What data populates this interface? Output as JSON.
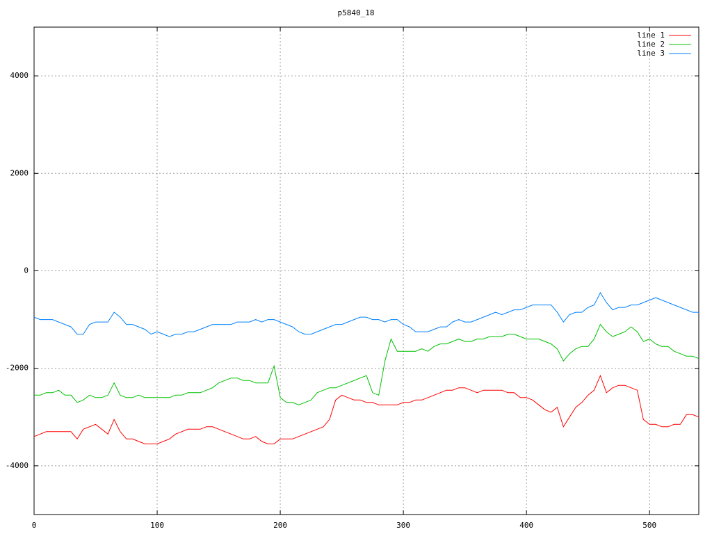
{
  "chart_data": {
    "type": "line",
    "title": "p5840_18",
    "legend": "top-right",
    "grid": true,
    "xlim": [
      0,
      540
    ],
    "ylim": [
      -5000,
      5000
    ],
    "xticks": [
      0,
      100,
      200,
      300,
      400,
      500
    ],
    "yticks": [
      -4000,
      -2000,
      0,
      2000,
      4000
    ],
    "x": [
      0,
      5,
      10,
      15,
      20,
      25,
      30,
      35,
      40,
      45,
      50,
      55,
      60,
      65,
      70,
      75,
      80,
      85,
      90,
      95,
      100,
      105,
      110,
      115,
      120,
      125,
      130,
      135,
      140,
      145,
      150,
      155,
      160,
      165,
      170,
      175,
      180,
      185,
      190,
      195,
      200,
      205,
      210,
      215,
      220,
      225,
      230,
      235,
      240,
      245,
      250,
      255,
      260,
      265,
      270,
      275,
      280,
      285,
      290,
      295,
      300,
      305,
      310,
      315,
      320,
      325,
      330,
      335,
      340,
      345,
      350,
      355,
      360,
      365,
      370,
      375,
      380,
      385,
      390,
      395,
      400,
      405,
      410,
      415,
      420,
      425,
      430,
      435,
      440,
      445,
      450,
      455,
      460,
      465,
      470,
      475,
      480,
      485,
      490,
      495,
      500,
      505,
      510,
      515,
      520,
      525,
      530,
      535,
      540
    ],
    "series": [
      {
        "name": "line 1",
        "color": "#ff0000",
        "values": [
          -3400,
          -3350,
          -3300,
          -3300,
          -3300,
          -3300,
          -3300,
          -3450,
          -3250,
          -3200,
          -3150,
          -3250,
          -3350,
          -3050,
          -3300,
          -3450,
          -3450,
          -3500,
          -3550,
          -3550,
          -3550,
          -3500,
          -3450,
          -3350,
          -3300,
          -3250,
          -3250,
          -3250,
          -3200,
          -3200,
          -3250,
          -3300,
          -3350,
          -3400,
          -3450,
          -3450,
          -3400,
          -3500,
          -3550,
          -3550,
          -3450,
          -3450,
          -3450,
          -3400,
          -3350,
          -3300,
          -3250,
          -3200,
          -3050,
          -2650,
          -2550,
          -2600,
          -2650,
          -2650,
          -2700,
          -2700,
          -2750,
          -2750,
          -2750,
          -2750,
          -2700,
          -2700,
          -2650,
          -2650,
          -2600,
          -2550,
          -2500,
          -2450,
          -2450,
          -2400,
          -2400,
          -2450,
          -2500,
          -2450,
          -2450,
          -2450,
          -2450,
          -2500,
          -2500,
          -2600,
          -2600,
          -2650,
          -2750,
          -2850,
          -2900,
          -2800,
          -3200,
          -3000,
          -2800,
          -2700,
          -2550,
          -2450,
          -2150,
          -2500,
          -2400,
          -2350,
          -2350,
          -2400,
          -2450,
          -3050,
          -3150,
          -3150,
          -3200,
          -3200,
          -3150,
          -3150,
          -2950,
          -2950,
          -3000
        ]
      },
      {
        "name": "line 2",
        "color": "#00c000",
        "values": [
          -2550,
          -2550,
          -2500,
          -2500,
          -2450,
          -2550,
          -2550,
          -2700,
          -2650,
          -2550,
          -2600,
          -2600,
          -2550,
          -2300,
          -2550,
          -2600,
          -2600,
          -2550,
          -2600,
          -2600,
          -2600,
          -2600,
          -2600,
          -2550,
          -2550,
          -2500,
          -2500,
          -2500,
          -2450,
          -2400,
          -2300,
          -2250,
          -2200,
          -2200,
          -2250,
          -2250,
          -2300,
          -2300,
          -2300,
          -1950,
          -2600,
          -2700,
          -2700,
          -2750,
          -2700,
          -2650,
          -2500,
          -2450,
          -2400,
          -2400,
          -2350,
          -2300,
          -2250,
          -2200,
          -2150,
          -2500,
          -2550,
          -1850,
          -1400,
          -1650,
          -1650,
          -1650,
          -1650,
          -1600,
          -1650,
          -1550,
          -1500,
          -1500,
          -1450,
          -1400,
          -1450,
          -1450,
          -1400,
          -1400,
          -1350,
          -1350,
          -1350,
          -1300,
          -1300,
          -1350,
          -1400,
          -1400,
          -1400,
          -1450,
          -1500,
          -1600,
          -1850,
          -1700,
          -1600,
          -1550,
          -1550,
          -1400,
          -1100,
          -1250,
          -1350,
          -1300,
          -1250,
          -1150,
          -1250,
          -1450,
          -1400,
          -1500,
          -1550,
          -1550,
          -1650,
          -1700,
          -1750,
          -1750,
          -1800
        ]
      },
      {
        "name": "line 3",
        "color": "#0080ff",
        "values": [
          -950,
          -1000,
          -1000,
          -1000,
          -1050,
          -1100,
          -1150,
          -1300,
          -1300,
          -1100,
          -1050,
          -1050,
          -1050,
          -850,
          -950,
          -1100,
          -1100,
          -1150,
          -1200,
          -1300,
          -1250,
          -1300,
          -1350,
          -1300,
          -1300,
          -1250,
          -1250,
          -1200,
          -1150,
          -1100,
          -1100,
          -1100,
          -1100,
          -1050,
          -1050,
          -1050,
          -1000,
          -1050,
          -1000,
          -1000,
          -1050,
          -1100,
          -1150,
          -1250,
          -1300,
          -1300,
          -1250,
          -1200,
          -1150,
          -1100,
          -1100,
          -1050,
          -1000,
          -950,
          -950,
          -1000,
          -1000,
          -1050,
          -1000,
          -1000,
          -1100,
          -1150,
          -1250,
          -1250,
          -1250,
          -1200,
          -1150,
          -1150,
          -1050,
          -1000,
          -1050,
          -1050,
          -1000,
          -950,
          -900,
          -850,
          -900,
          -850,
          -800,
          -800,
          -750,
          -700,
          -700,
          -700,
          -700,
          -850,
          -1050,
          -900,
          -850,
          -850,
          -750,
          -700,
          -450,
          -650,
          -800,
          -750,
          -750,
          -700,
          -700,
          -650,
          -600,
          -550,
          -600,
          -650,
          -700,
          -750,
          -800,
          -850,
          -850
        ]
      }
    ]
  }
}
